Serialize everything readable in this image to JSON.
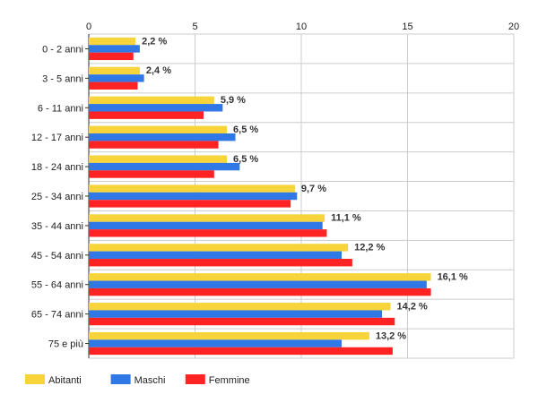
{
  "chart_data": {
    "type": "bar",
    "orientation": "horizontal",
    "categories": [
      "0 - 2 anni",
      "3 - 5 anni",
      "6 - 11 anni",
      "12 - 17 anni",
      "18 - 24 anni",
      "25 - 34 anni",
      "35 - 44 anni",
      "45 - 54 anni",
      "55 - 64 anni",
      "65 - 74 anni",
      "75 e più"
    ],
    "series": [
      {
        "name": "Abitanti",
        "color": "#f6d43a",
        "values": [
          2.2,
          2.4,
          5.9,
          6.5,
          6.5,
          9.7,
          11.1,
          12.2,
          16.1,
          14.2,
          13.2
        ]
      },
      {
        "name": "Maschi",
        "color": "#2f78e6",
        "values": [
          2.4,
          2.6,
          6.3,
          6.9,
          7.1,
          9.8,
          11.0,
          11.9,
          15.9,
          13.8,
          11.9
        ]
      },
      {
        "name": "Femmine",
        "color": "#ff2323",
        "values": [
          2.1,
          2.3,
          5.4,
          6.1,
          5.9,
          9.5,
          11.2,
          12.4,
          16.1,
          14.4,
          14.3
        ]
      }
    ],
    "data_labels": [
      "2,2 %",
      "2,4 %",
      "5,9 %",
      "6,5 %",
      "6,5 %",
      "9,7 %",
      "11,1 %",
      "12,2 %",
      "16,1 %",
      "14,2 %",
      "13,2 %"
    ],
    "x_ticks": [
      "0",
      "5",
      "10",
      "15",
      "20"
    ],
    "xlim": [
      0,
      20
    ],
    "grid": true,
    "legend_position": "bottom-left",
    "title": "",
    "xlabel": "",
    "ylabel": ""
  }
}
